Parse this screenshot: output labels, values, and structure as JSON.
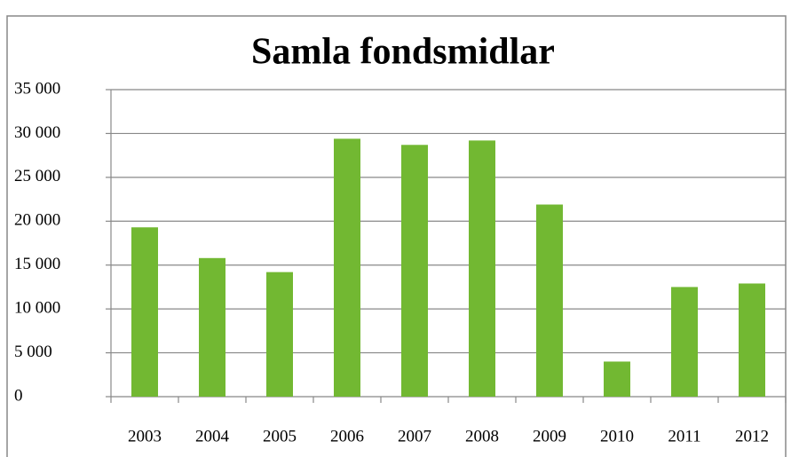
{
  "chart_data": {
    "type": "bar",
    "title": "Samla fondsmidlar",
    "categories": [
      "2003",
      "2004",
      "2005",
      "2006",
      "2007",
      "2008",
      "2009",
      "2010",
      "2011",
      "2012"
    ],
    "values": [
      19300,
      15800,
      14200,
      29400,
      28700,
      29200,
      21900,
      4000,
      12500,
      12900
    ],
    "color": "#72b832",
    "ylim": [
      0,
      35000
    ],
    "yticks": [
      0,
      {
        "value": 5000,
        "label": "5 000"
      },
      {
        "value": 10000,
        "label": "10 000"
      },
      {
        "value": 15000,
        "label": "15 000"
      },
      {
        "value": 20000,
        "label": "20 000"
      },
      {
        "value": 25000,
        "label": "25 000"
      },
      {
        "value": 30000,
        "label": "30 000"
      },
      {
        "value": 35000,
        "label": "35 000"
      }
    ],
    "grid": true
  }
}
